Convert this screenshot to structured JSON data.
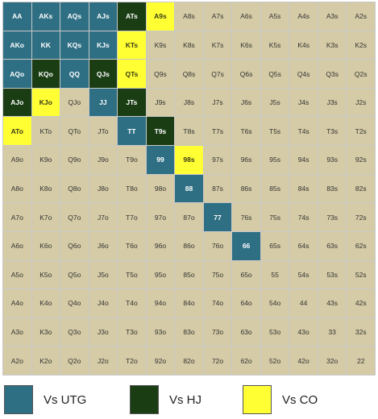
{
  "colors": {
    "Vs UTG": "#2e6f84",
    "Vs HJ": "#1a3d14",
    "Vs CO": "#ffff33",
    "default": "#d5cba6"
  },
  "grid": [
    [
      [
        "AA",
        "UTG"
      ],
      [
        "AKs",
        "UTG"
      ],
      [
        "AQs",
        "UTG"
      ],
      [
        "AJs",
        "UTG"
      ],
      [
        "ATs",
        "HJ"
      ],
      [
        "A9s",
        "CO"
      ],
      [
        "A8s",
        ""
      ],
      [
        "A7s",
        ""
      ],
      [
        "A6s",
        ""
      ],
      [
        "A5s",
        ""
      ],
      [
        "A4s",
        ""
      ],
      [
        "A3s",
        ""
      ],
      [
        "A2s",
        ""
      ]
    ],
    [
      [
        "AKo",
        "UTG"
      ],
      [
        "KK",
        "UTG"
      ],
      [
        "KQs",
        "UTG"
      ],
      [
        "KJs",
        "UTG"
      ],
      [
        "KTs",
        "CO"
      ],
      [
        "K9s",
        ""
      ],
      [
        "K8s",
        ""
      ],
      [
        "K7s",
        ""
      ],
      [
        "K6s",
        ""
      ],
      [
        "K5s",
        ""
      ],
      [
        "K4s",
        ""
      ],
      [
        "K3s",
        ""
      ],
      [
        "K2s",
        ""
      ]
    ],
    [
      [
        "AQo",
        "UTG"
      ],
      [
        "KQo",
        "HJ"
      ],
      [
        "QQ",
        "UTG"
      ],
      [
        "QJs",
        "HJ"
      ],
      [
        "QTs",
        "CO"
      ],
      [
        "Q9s",
        ""
      ],
      [
        "Q8s",
        ""
      ],
      [
        "Q7s",
        ""
      ],
      [
        "Q6s",
        ""
      ],
      [
        "Q5s",
        ""
      ],
      [
        "Q4s",
        ""
      ],
      [
        "Q3s",
        ""
      ],
      [
        "Q2s",
        ""
      ]
    ],
    [
      [
        "AJo",
        "HJ"
      ],
      [
        "KJo",
        "CO"
      ],
      [
        "QJo",
        ""
      ],
      [
        "JJ",
        "UTG"
      ],
      [
        "JTs",
        "HJ"
      ],
      [
        "J9s",
        ""
      ],
      [
        "J8s",
        ""
      ],
      [
        "J7s",
        ""
      ],
      [
        "J6s",
        ""
      ],
      [
        "J5s",
        ""
      ],
      [
        "J4s",
        ""
      ],
      [
        "J3s",
        ""
      ],
      [
        "J2s",
        ""
      ]
    ],
    [
      [
        "ATo",
        "CO"
      ],
      [
        "KTo",
        ""
      ],
      [
        "QTo",
        ""
      ],
      [
        "JTo",
        ""
      ],
      [
        "TT",
        "UTG"
      ],
      [
        "T9s",
        "HJ"
      ],
      [
        "T8s",
        ""
      ],
      [
        "T7s",
        ""
      ],
      [
        "T6s",
        ""
      ],
      [
        "T5s",
        ""
      ],
      [
        "T4s",
        ""
      ],
      [
        "T3s",
        ""
      ],
      [
        "T2s",
        ""
      ]
    ],
    [
      [
        "A9o",
        ""
      ],
      [
        "K9o",
        ""
      ],
      [
        "Q9o",
        ""
      ],
      [
        "J9o",
        ""
      ],
      [
        "T9o",
        ""
      ],
      [
        "99",
        "UTG"
      ],
      [
        "98s",
        "CO"
      ],
      [
        "97s",
        ""
      ],
      [
        "96s",
        ""
      ],
      [
        "95s",
        ""
      ],
      [
        "94s",
        ""
      ],
      [
        "93s",
        ""
      ],
      [
        "92s",
        ""
      ]
    ],
    [
      [
        "A8o",
        ""
      ],
      [
        "K8o",
        ""
      ],
      [
        "Q8o",
        ""
      ],
      [
        "J8o",
        ""
      ],
      [
        "T8o",
        ""
      ],
      [
        "98o",
        ""
      ],
      [
        "88",
        "UTG"
      ],
      [
        "87s",
        ""
      ],
      [
        "86s",
        ""
      ],
      [
        "85s",
        ""
      ],
      [
        "84s",
        ""
      ],
      [
        "83s",
        ""
      ],
      [
        "82s",
        ""
      ]
    ],
    [
      [
        "A7o",
        ""
      ],
      [
        "K7o",
        ""
      ],
      [
        "Q7o",
        ""
      ],
      [
        "J7o",
        ""
      ],
      [
        "T7o",
        ""
      ],
      [
        "97o",
        ""
      ],
      [
        "87o",
        ""
      ],
      [
        "77",
        "UTG"
      ],
      [
        "76s",
        ""
      ],
      [
        "75s",
        ""
      ],
      [
        "74s",
        ""
      ],
      [
        "73s",
        ""
      ],
      [
        "72s",
        ""
      ]
    ],
    [
      [
        "A6o",
        ""
      ],
      [
        "K6o",
        ""
      ],
      [
        "Q6o",
        ""
      ],
      [
        "J6o",
        ""
      ],
      [
        "T6o",
        ""
      ],
      [
        "96o",
        ""
      ],
      [
        "86o",
        ""
      ],
      [
        "76o",
        ""
      ],
      [
        "66",
        "UTG"
      ],
      [
        "65s",
        ""
      ],
      [
        "64s",
        ""
      ],
      [
        "63s",
        ""
      ],
      [
        "62s",
        ""
      ]
    ],
    [
      [
        "A5o",
        ""
      ],
      [
        "K5o",
        ""
      ],
      [
        "Q5o",
        ""
      ],
      [
        "J5o",
        ""
      ],
      [
        "T5o",
        ""
      ],
      [
        "95o",
        ""
      ],
      [
        "85o",
        ""
      ],
      [
        "75o",
        ""
      ],
      [
        "65o",
        ""
      ],
      [
        "55",
        ""
      ],
      [
        "54s",
        ""
      ],
      [
        "53s",
        ""
      ],
      [
        "52s",
        ""
      ]
    ],
    [
      [
        "A4o",
        ""
      ],
      [
        "K4o",
        ""
      ],
      [
        "Q4o",
        ""
      ],
      [
        "J4o",
        ""
      ],
      [
        "T4o",
        ""
      ],
      [
        "94o",
        ""
      ],
      [
        "84o",
        ""
      ],
      [
        "74o",
        ""
      ],
      [
        "64o",
        ""
      ],
      [
        "54o",
        ""
      ],
      [
        "44",
        ""
      ],
      [
        "43s",
        ""
      ],
      [
        "42s",
        ""
      ]
    ],
    [
      [
        "A3o",
        ""
      ],
      [
        "K3o",
        ""
      ],
      [
        "Q3o",
        ""
      ],
      [
        "J3o",
        ""
      ],
      [
        "T3o",
        ""
      ],
      [
        "93o",
        ""
      ],
      [
        "83o",
        ""
      ],
      [
        "73o",
        ""
      ],
      [
        "63o",
        ""
      ],
      [
        "53o",
        ""
      ],
      [
        "43o",
        ""
      ],
      [
        "33",
        ""
      ],
      [
        "32s",
        ""
      ]
    ],
    [
      [
        "A2o",
        ""
      ],
      [
        "K2o",
        ""
      ],
      [
        "Q2o",
        ""
      ],
      [
        "J2o",
        ""
      ],
      [
        "T2o",
        ""
      ],
      [
        "92o",
        ""
      ],
      [
        "82o",
        ""
      ],
      [
        "72o",
        ""
      ],
      [
        "62o",
        ""
      ],
      [
        "52o",
        ""
      ],
      [
        "42o",
        ""
      ],
      [
        "32o",
        ""
      ],
      [
        "22",
        ""
      ]
    ]
  ],
  "legend": [
    {
      "label": "Vs UTG",
      "key": "UTG"
    },
    {
      "label": "Vs HJ",
      "key": "HJ"
    },
    {
      "label": "Vs CO",
      "key": "CO"
    }
  ]
}
